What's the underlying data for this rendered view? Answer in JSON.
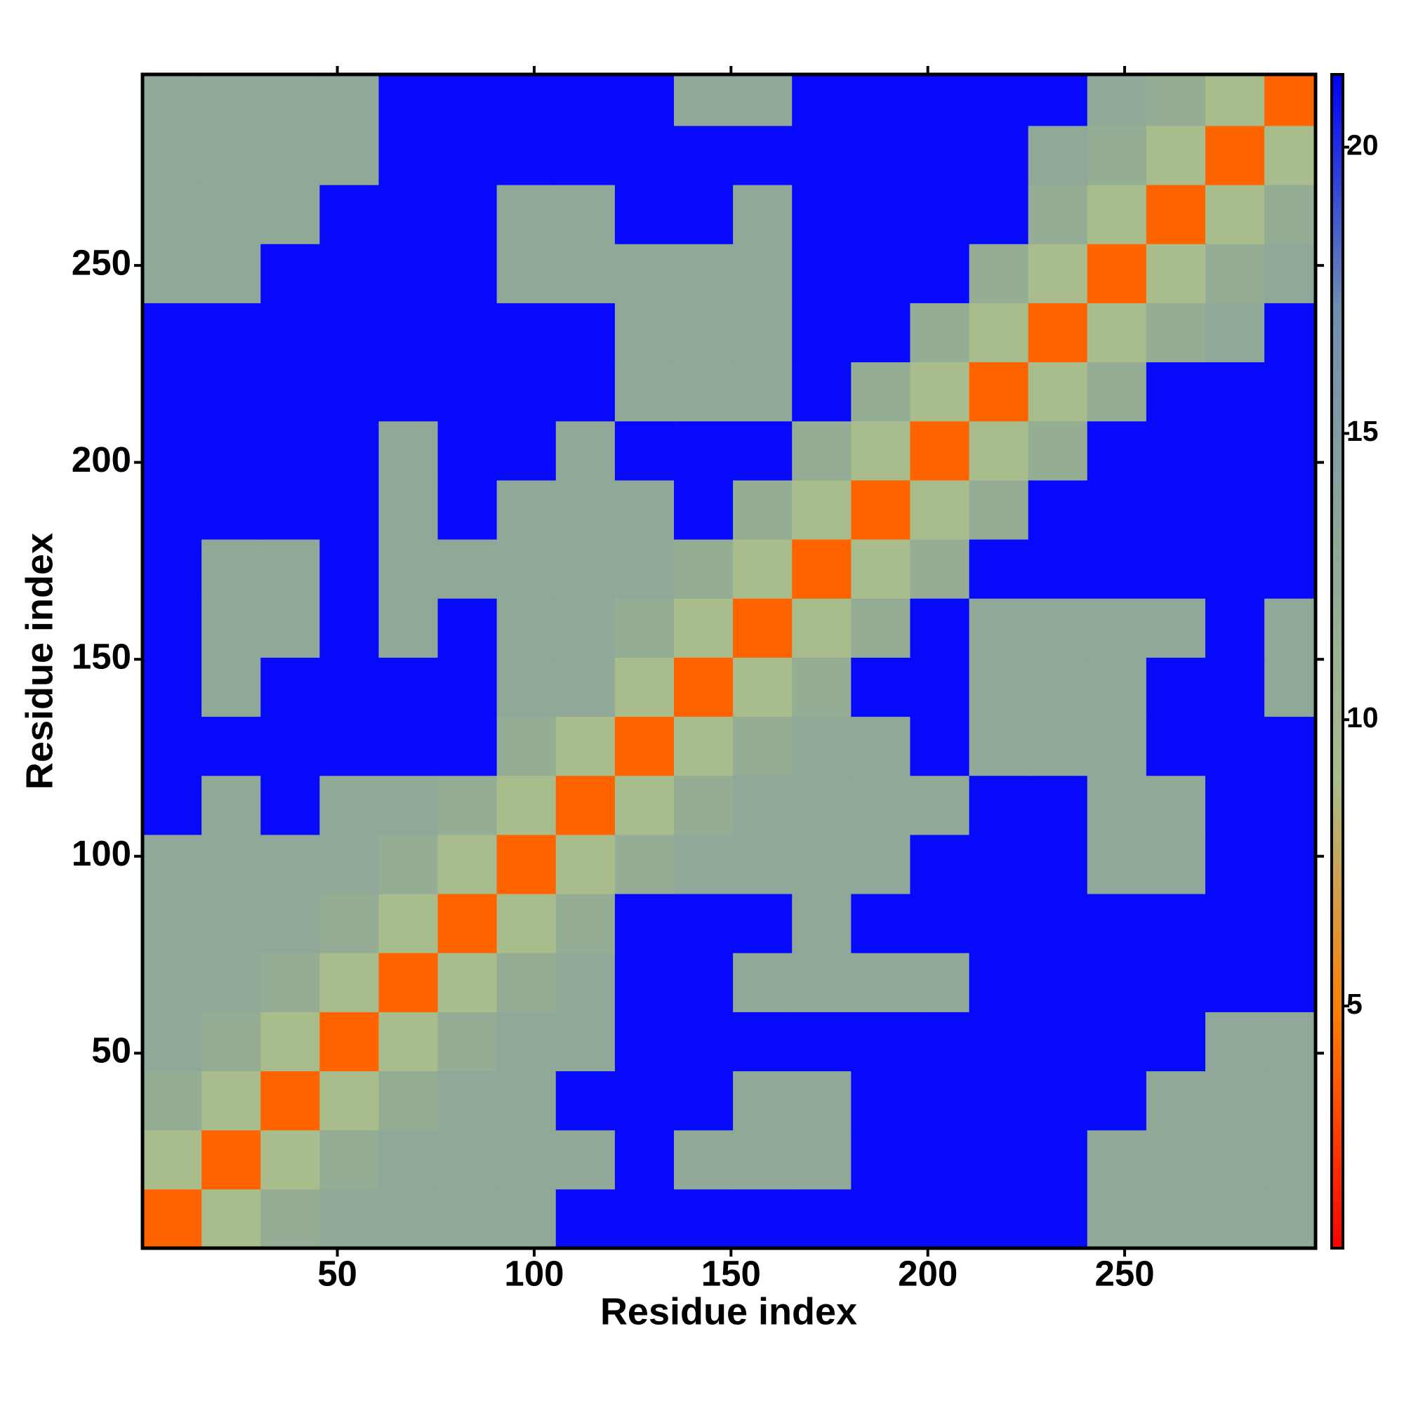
{
  "chart_data": {
    "type": "heatmap",
    "xlabel": "Residue index",
    "ylabel": "Residue index",
    "x": [
      8,
      23,
      38,
      53,
      68,
      83,
      98,
      113,
      128,
      143,
      158,
      173,
      188,
      203,
      218,
      233,
      248,
      263,
      278,
      293
    ],
    "y": [
      8,
      23,
      38,
      53,
      68,
      83,
      98,
      113,
      128,
      143,
      158,
      173,
      188,
      203,
      218,
      233,
      248,
      263,
      278,
      293
    ],
    "z": [
      [
        4,
        9,
        12,
        13,
        13,
        13,
        13,
        21,
        21,
        21,
        21,
        21,
        21,
        21,
        21,
        21,
        13,
        13,
        13,
        13
      ],
      [
        9,
        4,
        9,
        12,
        13,
        13,
        13,
        13,
        21,
        13,
        13,
        13,
        21,
        21,
        21,
        21,
        13,
        13,
        13,
        13
      ],
      [
        12,
        9,
        4,
        9,
        12,
        13,
        13,
        21,
        21,
        21,
        13,
        13,
        21,
        21,
        21,
        21,
        21,
        13,
        13,
        13
      ],
      [
        13,
        12,
        9,
        4,
        9,
        12,
        13,
        13,
        21,
        21,
        21,
        21,
        21,
        21,
        21,
        21,
        21,
        21,
        13,
        13
      ],
      [
        13,
        13,
        12,
        9,
        4,
        9,
        12,
        13,
        21,
        21,
        13,
        13,
        13,
        13,
        21,
        21,
        21,
        21,
        21,
        21
      ],
      [
        13,
        13,
        13,
        12,
        9,
        4,
        9,
        12,
        21,
        21,
        21,
        13,
        21,
        21,
        21,
        21,
        21,
        21,
        21,
        21
      ],
      [
        13,
        13,
        13,
        13,
        12,
        9,
        4,
        9,
        12,
        13,
        13,
        13,
        13,
        21,
        21,
        21,
        13,
        13,
        21,
        21
      ],
      [
        21,
        13,
        21,
        13,
        13,
        12,
        9,
        4,
        9,
        12,
        13,
        13,
        13,
        13,
        21,
        21,
        13,
        13,
        21,
        21
      ],
      [
        21,
        21,
        21,
        21,
        21,
        21,
        12,
        9,
        4,
        9,
        12,
        13,
        13,
        21,
        13,
        13,
        13,
        21,
        21,
        21
      ],
      [
        21,
        13,
        21,
        21,
        21,
        21,
        13,
        13,
        9,
        4,
        9,
        12,
        21,
        21,
        13,
        13,
        13,
        21,
        21,
        13
      ],
      [
        21,
        13,
        13,
        21,
        13,
        21,
        13,
        13,
        12,
        9,
        4,
        9,
        12,
        21,
        13,
        13,
        13,
        13,
        21,
        13
      ],
      [
        21,
        13,
        13,
        21,
        13,
        13,
        13,
        13,
        13,
        12,
        9,
        4,
        9,
        12,
        21,
        21,
        21,
        21,
        21,
        21
      ],
      [
        21,
        21,
        21,
        21,
        13,
        21,
        13,
        13,
        13,
        21,
        12,
        9,
        4,
        9,
        12,
        21,
        21,
        21,
        21,
        21
      ],
      [
        21,
        21,
        21,
        21,
        13,
        21,
        21,
        13,
        21,
        21,
        21,
        12,
        9,
        4,
        9,
        12,
        21,
        21,
        21,
        21
      ],
      [
        21,
        21,
        21,
        21,
        21,
        21,
        21,
        21,
        13,
        13,
        13,
        21,
        12,
        9,
        4,
        9,
        12,
        21,
        21,
        21
      ],
      [
        21,
        21,
        21,
        21,
        21,
        21,
        21,
        21,
        13,
        13,
        13,
        21,
        21,
        12,
        9,
        4,
        9,
        12,
        13,
        21
      ],
      [
        13,
        13,
        21,
        21,
        21,
        21,
        13,
        13,
        13,
        13,
        13,
        21,
        21,
        21,
        12,
        9,
        4,
        9,
        12,
        13
      ],
      [
        13,
        13,
        13,
        21,
        21,
        21,
        13,
        13,
        21,
        21,
        13,
        21,
        21,
        21,
        21,
        12,
        9,
        4,
        9,
        12
      ],
      [
        13,
        13,
        13,
        13,
        21,
        21,
        21,
        21,
        21,
        21,
        21,
        21,
        21,
        21,
        21,
        13,
        12,
        9,
        4,
        9
      ],
      [
        13,
        13,
        13,
        13,
        21,
        21,
        21,
        21,
        21,
        13,
        13,
        21,
        21,
        21,
        21,
        21,
        13,
        12,
        9,
        4
      ]
    ],
    "xlim": [
      0.5,
      298.5
    ],
    "ylim": [
      0.5,
      298.5
    ],
    "xticks": [
      50,
      100,
      150,
      200,
      250
    ],
    "yticks": [
      50,
      100,
      150,
      200,
      250
    ],
    "colorbar": {
      "lim": [
        0.77,
        21.27
      ],
      "ticks": [
        5,
        10,
        15,
        20
      ]
    },
    "colormap": [
      "#ff0000",
      "#ff7f00",
      "#a8bc8c",
      "#8fa898",
      "#6f8fb0",
      "#0000ff"
    ]
  }
}
